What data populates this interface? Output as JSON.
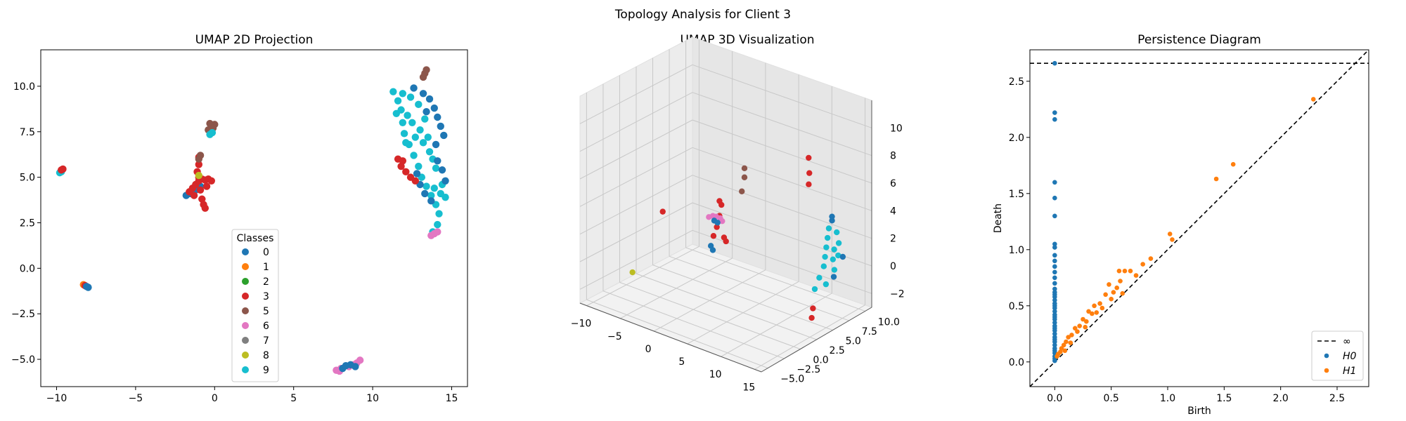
{
  "suptitle": "Topology Analysis for Client 3",
  "colors": {
    "0": "#1f77b4",
    "1": "#ff7f0e",
    "2": "#2ca02c",
    "3": "#d62728",
    "5": "#8c564b",
    "6": "#e377c2",
    "7": "#7f7f7f",
    "8": "#bcbd22",
    "9": "#17becf"
  },
  "chart_data": [
    {
      "type": "scatter",
      "title": "UMAP 2D Projection",
      "xlim": [
        -11,
        16
      ],
      "ylim": [
        -6.5,
        12
      ],
      "xticks": [
        -10,
        -5,
        0,
        5,
        10,
        15
      ],
      "yticks": [
        -5.0,
        -2.5,
        0.0,
        2.5,
        5.0,
        7.5,
        10.0
      ],
      "xtick_labels": [
        "−10",
        "−5",
        "0",
        "5",
        "10",
        "15"
      ],
      "ytick_labels": [
        "−5.0",
        "−2.5",
        "0.0",
        "2.5",
        "5.0",
        "7.5",
        "10.0"
      ],
      "legend": {
        "title": "Classes",
        "placement": "lower center",
        "entries": [
          "0",
          "1",
          "2",
          "3",
          "5",
          "6",
          "7",
          "8",
          "9"
        ]
      },
      "clusters": [
        {
          "class": "9",
          "points": [
            [
              -9.8,
              5.25
            ],
            [
              -9.7,
              5.3
            ]
          ]
        },
        {
          "class": "3",
          "points": [
            [
              -9.7,
              5.4
            ],
            [
              -9.6,
              5.45
            ]
          ]
        },
        {
          "class": "1",
          "points": [
            [
              -8.3,
              -0.9
            ]
          ]
        },
        {
          "class": "3",
          "points": [
            [
              -8.2,
              -0.95
            ]
          ]
        },
        {
          "class": "0",
          "points": [
            [
              -8.1,
              -1.0
            ],
            [
              -8.0,
              -1.05
            ]
          ]
        },
        {
          "class": "0",
          "points": [
            [
              -1.8,
              4.0
            ],
            [
              -1.5,
              4.1
            ],
            [
              -1.2,
              4.3
            ],
            [
              -0.9,
              4.5
            ]
          ]
        },
        {
          "class": "3",
          "points": [
            [
              -1.6,
              4.2
            ],
            [
              -1.4,
              4.4
            ],
            [
              -1.2,
              4.6
            ],
            [
              -1.0,
              4.8
            ],
            [
              -0.8,
              4.9
            ],
            [
              -0.6,
              4.85
            ],
            [
              -0.4,
              4.9
            ],
            [
              -0.2,
              4.8
            ],
            [
              -0.9,
              4.3
            ],
            [
              -1.1,
              5.3
            ],
            [
              -1.0,
              5.7
            ],
            [
              -1.0,
              6.1
            ],
            [
              -0.8,
              3.8
            ],
            [
              -0.7,
              3.5
            ],
            [
              -0.6,
              3.3
            ],
            [
              -1.3,
              4.0
            ],
            [
              -0.5,
              4.5
            ],
            [
              -1.0,
              5.0
            ]
          ]
        },
        {
          "class": "5",
          "points": [
            [
              -1.0,
              6.0
            ],
            [
              -0.9,
              6.2
            ]
          ]
        },
        {
          "class": "8",
          "points": [
            [
              -1.0,
              5.1
            ]
          ]
        },
        {
          "class": "5",
          "points": [
            [
              -0.4,
              7.6
            ],
            [
              -0.2,
              7.8
            ],
            [
              0.0,
              7.9
            ],
            [
              -0.3,
              7.95
            ],
            [
              -0.1,
              7.7
            ]
          ]
        },
        {
          "class": "9",
          "points": [
            [
              -0.3,
              7.35
            ],
            [
              -0.15,
              7.45
            ]
          ]
        },
        {
          "class": "9",
          "points": [
            [
              11.3,
              9.7
            ],
            [
              11.6,
              9.2
            ],
            [
              11.8,
              8.7
            ],
            [
              11.9,
              8.0
            ],
            [
              12.0,
              7.4
            ],
            [
              12.3,
              6.8
            ],
            [
              12.6,
              6.2
            ],
            [
              12.9,
              5.6
            ],
            [
              13.1,
              5.0
            ],
            [
              13.4,
              4.5
            ],
            [
              13.7,
              4.0
            ],
            [
              14.0,
              3.5
            ],
            [
              14.2,
              3.0
            ],
            [
              14.1,
              2.4
            ],
            [
              13.8,
              2.0
            ],
            [
              11.9,
              9.6
            ],
            [
              12.4,
              9.4
            ],
            [
              12.9,
              9.0
            ],
            [
              13.3,
              8.2
            ],
            [
              13.5,
              7.2
            ],
            [
              13.6,
              6.4
            ],
            [
              14.0,
              5.5
            ],
            [
              14.4,
              4.6
            ],
            [
              14.6,
              3.9
            ],
            [
              12.5,
              8.0
            ],
            [
              13.0,
              7.6
            ],
            [
              12.2,
              8.4
            ],
            [
              13.8,
              6.0
            ],
            [
              14.3,
              4.1
            ],
            [
              11.5,
              8.5
            ],
            [
              12.1,
              6.9
            ],
            [
              13.2,
              6.9
            ],
            [
              12.7,
              7.2
            ],
            [
              13.9,
              4.4
            ]
          ]
        },
        {
          "class": "0",
          "points": [
            [
              12.6,
              9.9
            ],
            [
              13.2,
              9.6
            ],
            [
              13.6,
              9.3
            ],
            [
              13.9,
              8.8
            ],
            [
              14.1,
              8.3
            ],
            [
              14.3,
              7.8
            ],
            [
              14.5,
              7.3
            ],
            [
              14.1,
              5.9
            ],
            [
              14.4,
              5.4
            ],
            [
              14.6,
              4.8
            ],
            [
              13.0,
              4.6
            ],
            [
              13.3,
              4.1
            ],
            [
              13.7,
              3.7
            ],
            [
              12.8,
              5.2
            ],
            [
              14.0,
              6.8
            ],
            [
              13.4,
              8.6
            ]
          ]
        },
        {
          "class": "3",
          "points": [
            [
              11.6,
              6.0
            ],
            [
              11.8,
              5.6
            ],
            [
              12.1,
              5.3
            ],
            [
              12.4,
              5.0
            ],
            [
              12.7,
              4.8
            ],
            [
              11.9,
              5.9
            ]
          ]
        },
        {
          "class": "5",
          "points": [
            [
              13.2,
              10.5
            ],
            [
              13.4,
              10.9
            ],
            [
              13.3,
              10.7
            ]
          ]
        },
        {
          "class": "6",
          "points": [
            [
              13.7,
              1.8
            ],
            [
              13.9,
              1.9
            ],
            [
              14.1,
              2.0
            ]
          ]
        },
        {
          "class": "6",
          "points": [
            [
              7.7,
              -5.6
            ],
            [
              8.0,
              -5.5
            ],
            [
              8.5,
              -5.4
            ],
            [
              8.8,
              -5.3
            ],
            [
              9.0,
              -5.2
            ],
            [
              9.2,
              -5.05
            ],
            [
              7.9,
              -5.65
            ]
          ]
        },
        {
          "class": "0",
          "points": [
            [
              8.1,
              -5.5
            ],
            [
              8.3,
              -5.35
            ],
            [
              8.6,
              -5.3
            ],
            [
              8.9,
              -5.4
            ]
          ]
        }
      ]
    },
    {
      "type": "scatter",
      "title": "UMAP 3D Visualization",
      "xlim": [
        -11,
        16
      ],
      "ylim": [
        -6,
        11
      ],
      "zlim": [
        -3,
        12
      ],
      "xticks": [
        -10,
        -5,
        0,
        5,
        10,
        15
      ],
      "yticks": [
        -5.0,
        -2.5,
        0.0,
        2.5,
        5.0,
        7.5,
        10.0
      ],
      "zticks": [
        -2,
        0,
        2,
        4,
        6,
        8,
        10
      ],
      "xtick_labels": [
        "−10",
        "−5",
        "0",
        "5",
        "10",
        "15"
      ],
      "ytick_labels": [
        "−5.0",
        "−2.5",
        "0.0",
        "2.5",
        "5.0",
        "7.5",
        "10.0"
      ],
      "ztick_labels": [
        "−2",
        "0",
        "2",
        "4",
        "6",
        "8",
        "10"
      ],
      "clusters": [
        {
          "class": "3",
          "points": [
            [
              -9.8,
              5.3,
              1.0
            ]
          ]
        },
        {
          "class": "8",
          "points": [
            [
              -8.1,
              -1.0,
              -1.5
            ]
          ]
        },
        {
          "class": "3",
          "points": [
            [
              -1.2,
              4.3,
              1.0
            ],
            [
              -1.0,
              4.6,
              1.6
            ],
            [
              -0.8,
              4.8,
              2.4
            ],
            [
              -0.6,
              4.9,
              3.2
            ],
            [
              -0.9,
              5.6,
              0.6
            ],
            [
              -1.0,
              6.0,
              0.2
            ],
            [
              -0.5,
              4.5,
              3.6
            ]
          ]
        },
        {
          "class": "0",
          "points": [
            [
              -1.4,
              4.1,
              0.3
            ],
            [
              -1.2,
              4.2,
              0.0
            ]
          ]
        },
        {
          "class": "5",
          "points": [
            [
              -0.3,
              7.7,
              3.5
            ],
            [
              -0.1,
              7.9,
              4.5
            ],
            [
              0.0,
              7.8,
              5.2
            ]
          ]
        },
        {
          "class": "3",
          "points": [
            [
              11.6,
              5.8,
              8.5
            ],
            [
              11.9,
              5.6,
              7.5
            ],
            [
              12.1,
              5.3,
              6.8
            ]
          ]
        },
        {
          "class": "9",
          "points": [
            [
              11.5,
              9.0,
              2.5
            ],
            [
              11.8,
              8.5,
              2.0
            ],
            [
              12.1,
              8.0,
              1.5
            ],
            [
              12.4,
              7.5,
              1.0
            ],
            [
              12.7,
              7.0,
              0.5
            ],
            [
              13.0,
              6.0,
              0.0
            ],
            [
              13.3,
              5.0,
              -0.5
            ],
            [
              12.2,
              9.5,
              2.2
            ],
            [
              12.8,
              9.2,
              1.6
            ],
            [
              13.4,
              8.5,
              1.0
            ],
            [
              13.8,
              7.5,
              0.3
            ],
            [
              14.0,
              6.0,
              -0.3
            ],
            [
              13.1,
              8.0,
              0.8
            ],
            [
              12.5,
              8.8,
              1.2
            ]
          ]
        },
        {
          "class": "0",
          "points": [
            [
              11.2,
              9.8,
              2.8
            ],
            [
              11.0,
              10.0,
              3.0
            ],
            [
              13.6,
              9.0,
              0.8
            ],
            [
              14.2,
              7.0,
              0.0
            ]
          ]
        },
        {
          "class": "3",
          "points": [
            [
              14.0,
              4.0,
              -1.5
            ],
            [
              14.3,
              3.5,
              -2.0
            ]
          ]
        },
        {
          "class": "6",
          "points": [
            [
              7.8,
              -5.6,
              6.6
            ],
            [
              8.2,
              -5.4,
              6.7
            ],
            [
              8.6,
              -5.3,
              6.7
            ],
            [
              9.0,
              -5.1,
              6.6
            ],
            [
              9.2,
              -5.0,
              6.4
            ]
          ]
        },
        {
          "class": "0",
          "points": [
            [
              8.4,
              -5.4,
              6.4
            ],
            [
              8.8,
              -5.3,
              6.3
            ]
          ]
        }
      ]
    },
    {
      "type": "scatter",
      "title": "Persistence Diagram",
      "xlabel": "Birth",
      "ylabel": "Death",
      "xlim": [
        -0.22,
        2.78
      ],
      "ylim": [
        -0.22,
        2.78
      ],
      "xticks": [
        0.0,
        0.5,
        1.0,
        1.5,
        2.0,
        2.5
      ],
      "yticks": [
        0.0,
        0.5,
        1.0,
        1.5,
        2.0,
        2.5
      ],
      "xtick_labels": [
        "0.0",
        "0.5",
        "1.0",
        "1.5",
        "2.0",
        "2.5"
      ],
      "ytick_labels": [
        "0.0",
        "0.5",
        "1.0",
        "1.5",
        "2.0",
        "2.5"
      ],
      "infinity_death": 2.66,
      "legend": {
        "placement": "lower right",
        "entries": [
          "∞",
          "H0",
          "H1"
        ]
      },
      "h0": {
        "birth": 0.0,
        "deaths": [
          2.66,
          2.22,
          2.16,
          1.6,
          1.46,
          1.3,
          1.05,
          1.02,
          0.95,
          0.9,
          0.85,
          0.8,
          0.75,
          0.7,
          0.65,
          0.62,
          0.6,
          0.58,
          0.55,
          0.52,
          0.5,
          0.48,
          0.45,
          0.42,
          0.4,
          0.38,
          0.35,
          0.32,
          0.3,
          0.28,
          0.25,
          0.22,
          0.2,
          0.18,
          0.15,
          0.12,
          0.1,
          0.08,
          0.05,
          0.03,
          0.01
        ]
      },
      "h1": [
        [
          2.29,
          2.34
        ],
        [
          1.58,
          1.76
        ],
        [
          1.43,
          1.63
        ],
        [
          1.02,
          1.14
        ],
        [
          1.04,
          1.09
        ],
        [
          0.85,
          0.92
        ],
        [
          0.78,
          0.87
        ],
        [
          0.62,
          0.81
        ],
        [
          0.57,
          0.81
        ],
        [
          0.67,
          0.81
        ],
        [
          0.72,
          0.77
        ],
        [
          0.58,
          0.72
        ],
        [
          0.48,
          0.69
        ],
        [
          0.55,
          0.66
        ],
        [
          0.6,
          0.61
        ],
        [
          0.52,
          0.62
        ],
        [
          0.45,
          0.6
        ],
        [
          0.4,
          0.52
        ],
        [
          0.35,
          0.5
        ],
        [
          0.42,
          0.48
        ],
        [
          0.3,
          0.45
        ],
        [
          0.33,
          0.43
        ],
        [
          0.25,
          0.38
        ],
        [
          0.28,
          0.36
        ],
        [
          0.22,
          0.32
        ],
        [
          0.18,
          0.3
        ],
        [
          0.2,
          0.27
        ],
        [
          0.15,
          0.24
        ],
        [
          0.12,
          0.22
        ],
        [
          0.1,
          0.18
        ],
        [
          0.08,
          0.15
        ],
        [
          0.06,
          0.12
        ],
        [
          0.05,
          0.09
        ],
        [
          0.03,
          0.07
        ],
        [
          0.02,
          0.05
        ],
        [
          0.37,
          0.44
        ],
        [
          0.5,
          0.56
        ],
        [
          0.27,
          0.31
        ],
        [
          0.14,
          0.17
        ],
        [
          0.09,
          0.1
        ]
      ]
    }
  ]
}
